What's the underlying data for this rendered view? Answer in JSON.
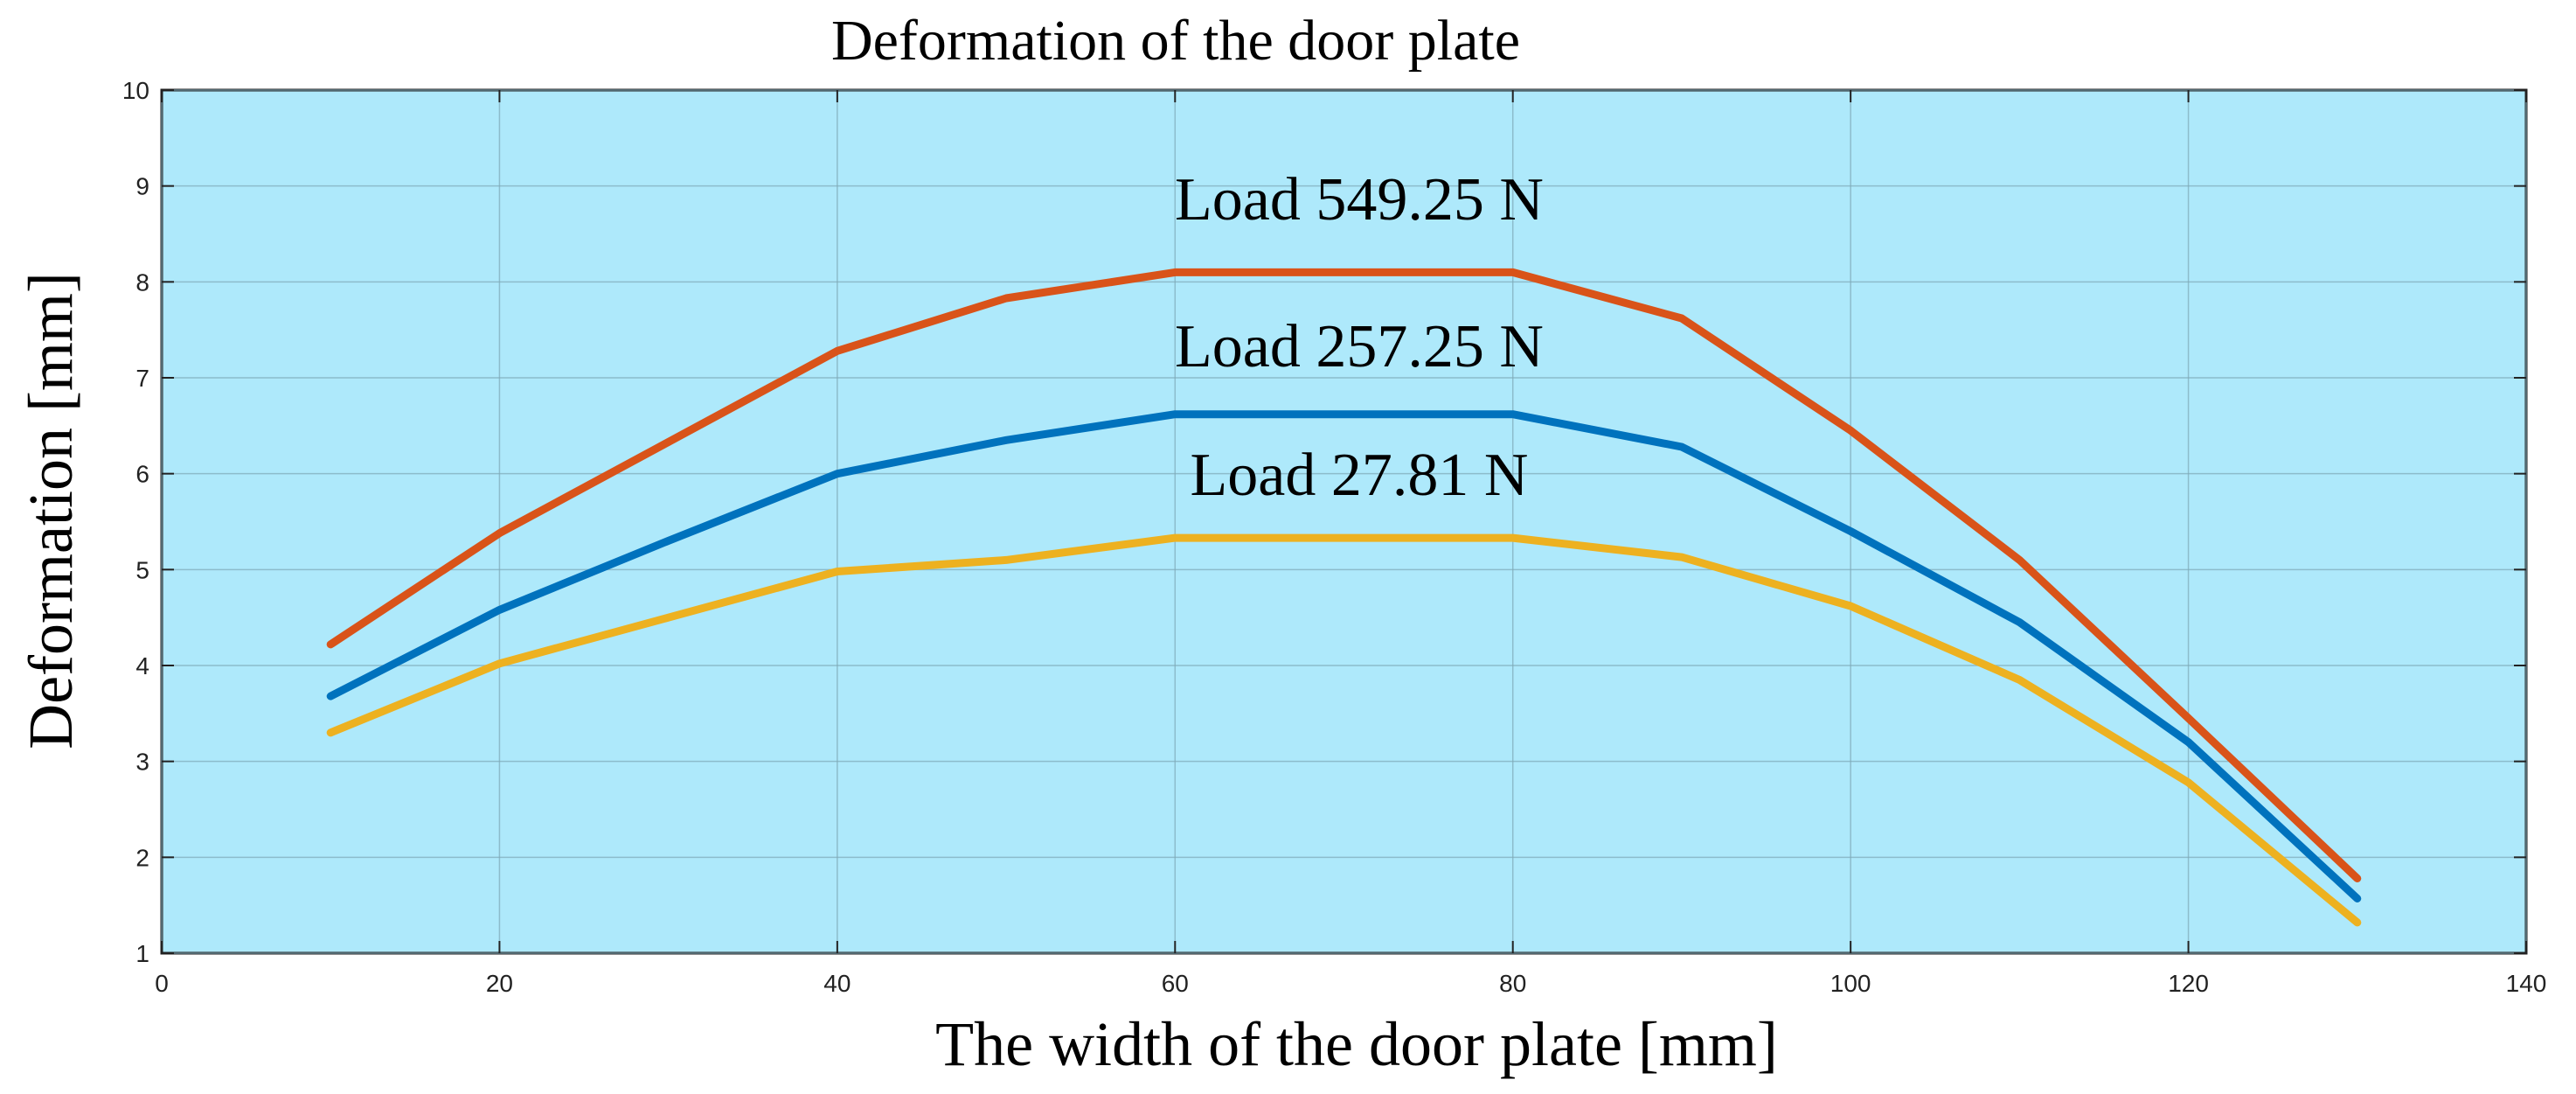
{
  "chart_data": {
    "type": "line",
    "title": "Deformation of the door plate",
    "xlabel": "The width of the door plate [mm]",
    "ylabel": "Deformation [mm]",
    "xlim": [
      0,
      140
    ],
    "ylim": [
      1,
      10
    ],
    "xticks": [
      0,
      20,
      40,
      60,
      80,
      100,
      120,
      140
    ],
    "yticks": [
      1,
      2,
      3,
      4,
      5,
      6,
      7,
      8,
      9,
      10
    ],
    "grid": true,
    "background_color": "#aee9fb",
    "x": [
      10,
      20,
      30,
      40,
      50,
      60,
      70,
      80,
      90,
      100,
      110,
      120,
      130
    ],
    "series": [
      {
        "name": "Load 549.25 N",
        "color": "#d95319",
        "values": [
          4.22,
          5.38,
          6.33,
          7.28,
          7.83,
          8.1,
          8.1,
          8.1,
          7.62,
          6.45,
          5.1,
          3.45,
          1.78
        ]
      },
      {
        "name": "Load 257.25 N",
        "color": "#0072bd",
        "values": [
          3.68,
          4.58,
          5.3,
          6.0,
          6.35,
          6.62,
          6.62,
          6.62,
          6.28,
          5.4,
          4.45,
          3.2,
          1.57
        ]
      },
      {
        "name": "Load 27.81 N",
        "color": "#edb120",
        "values": [
          3.3,
          4.02,
          4.5,
          4.98,
          5.1,
          5.33,
          5.33,
          5.33,
          5.13,
          4.62,
          3.85,
          2.78,
          1.32
        ]
      }
    ]
  }
}
